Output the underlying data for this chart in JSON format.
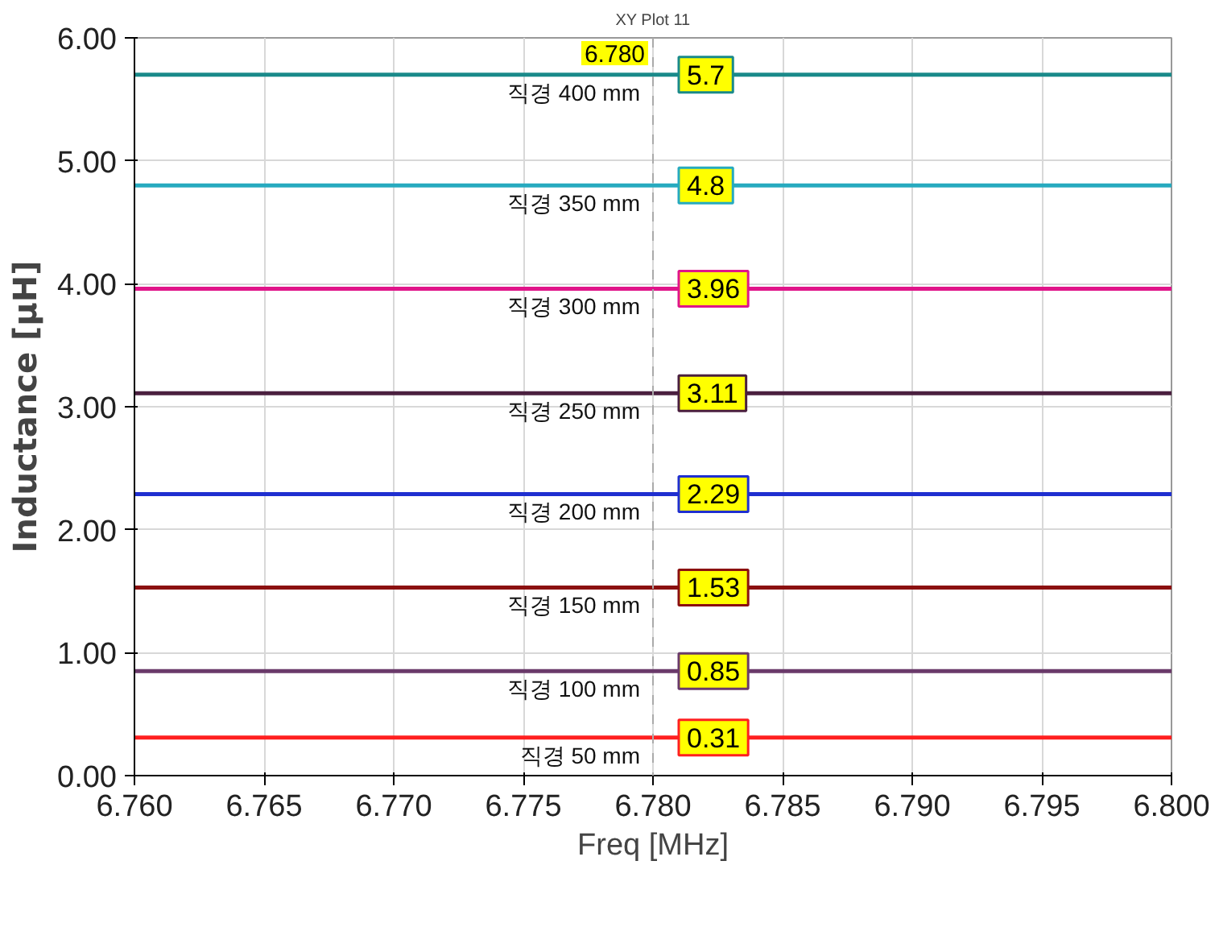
{
  "chart_data": {
    "type": "line",
    "title": "XY Plot 11",
    "xlabel": "Freq [MHz]",
    "ylabel": "Inductance [µH]",
    "x": [
      6.76,
      6.78,
      6.8
    ],
    "series": [
      {
        "name": "직경 400 mm",
        "color": "#1a8a8a",
        "values": [
          5.7,
          5.7,
          5.7
        ],
        "value_labels": [
          null,
          "5.7",
          null
        ]
      },
      {
        "name": "직경 350 mm",
        "color": "#27aabf",
        "values": [
          4.8,
          4.8,
          4.8
        ],
        "value_labels": [
          null,
          "4.8",
          null
        ]
      },
      {
        "name": "직경 300 mm",
        "color": "#e0158a",
        "values": [
          3.96,
          3.96,
          3.96
        ],
        "value_labels": [
          null,
          "3.96",
          null
        ]
      },
      {
        "name": "직경 250 mm",
        "color": "#4a1f3f",
        "values": [
          3.11,
          3.11,
          3.11
        ],
        "value_labels": [
          null,
          "3.11",
          null
        ]
      },
      {
        "name": "직경 200 mm",
        "color": "#1f2fd0",
        "values": [
          2.29,
          2.29,
          2.29
        ],
        "value_labels": [
          null,
          "2.29",
          null
        ]
      },
      {
        "name": "직경 150 mm",
        "color": "#8b1010",
        "values": [
          1.53,
          1.53,
          1.53
        ],
        "value_labels": [
          null,
          "1.53",
          null
        ]
      },
      {
        "name": "직경 100 mm",
        "color": "#6a3a6a",
        "values": [
          0.85,
          0.85,
          0.85
        ],
        "value_labels": [
          null,
          "0.85",
          null
        ]
      },
      {
        "name": "직경 50 mm",
        "color": "#ff2020",
        "values": [
          0.31,
          0.31,
          0.31
        ],
        "value_labels": [
          null,
          "0.31",
          null
        ]
      }
    ],
    "xlim": [
      6.76,
      6.8
    ],
    "xticks": [
      {
        "value": 6.76,
        "label": "6.760"
      },
      {
        "value": 6.765,
        "label": "6.765"
      },
      {
        "value": 6.77,
        "label": "6.770"
      },
      {
        "value": 6.775,
        "label": "6.775"
      },
      {
        "value": 6.78,
        "label": "6.780"
      },
      {
        "value": 6.785,
        "label": "6.785"
      },
      {
        "value": 6.79,
        "label": "6.790"
      },
      {
        "value": 6.795,
        "label": "6.795"
      },
      {
        "value": 6.8,
        "label": "6.800"
      }
    ],
    "ylim": [
      0,
      6
    ],
    "yticks": [
      {
        "value": 0,
        "label": "0.00"
      },
      {
        "value": 1,
        "label": "1.00"
      },
      {
        "value": 2,
        "label": "2.00"
      },
      {
        "value": 3,
        "label": "3.00"
      },
      {
        "value": 4,
        "label": "4.00"
      },
      {
        "value": 5,
        "label": "5.00"
      },
      {
        "value": 6,
        "label": "6.00"
      }
    ],
    "ref_lines": [
      {
        "axis": "x",
        "value": 6.78,
        "label": "6.780",
        "color": "#aaaaaa",
        "line_style": "dashed"
      }
    ],
    "grid": true,
    "line_style": "solid",
    "marker": "none"
  }
}
